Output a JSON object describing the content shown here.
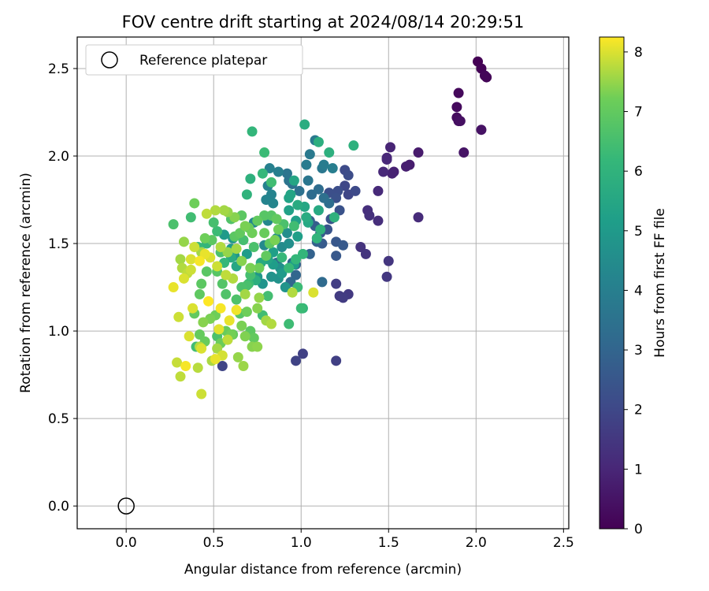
{
  "chart_data": {
    "type": "scatter",
    "title": "FOV centre drift starting at 2024/08/14 20:29:51",
    "xlabel": "Angular distance from reference (arcmin)",
    "ylabel": "Rotation from reference (arcmin)",
    "xlim": [
      -0.28,
      2.53
    ],
    "ylim": [
      -0.13,
      2.68
    ],
    "x_ticks": [
      0.0,
      0.5,
      1.0,
      1.5,
      2.0,
      2.5
    ],
    "x_tick_labels": [
      "0.0",
      "0.5",
      "1.0",
      "1.5",
      "2.0",
      "2.5"
    ],
    "y_ticks": [
      0.0,
      0.5,
      1.0,
      1.5,
      2.0,
      2.5
    ],
    "y_tick_labels": [
      "0.0",
      "0.5",
      "1.0",
      "1.5",
      "2.0",
      "2.5"
    ],
    "grid": true,
    "legend": {
      "placement": "top-left",
      "entries": [
        "Reference platepar"
      ]
    },
    "reference_point": {
      "x": 0.0,
      "y": 0.0
    },
    "colorbar": {
      "label": "Hours from first FF file",
      "range": [
        0,
        8.25
      ],
      "ticks": [
        0,
        1,
        2,
        3,
        4,
        5,
        6,
        7,
        8
      ],
      "tick_labels": [
        "0",
        "1",
        "2",
        "3",
        "4",
        "5",
        "6",
        "7",
        "8"
      ],
      "colormap": "viridis"
    },
    "points": [
      [
        2.01,
        2.54,
        0.0
      ],
      [
        2.03,
        2.5,
        0.05
      ],
      [
        2.06,
        2.45,
        0.1
      ],
      [
        2.05,
        2.46,
        0.12
      ],
      [
        1.9,
        2.36,
        0.2
      ],
      [
        1.89,
        2.28,
        0.25
      ],
      [
        1.89,
        2.22,
        0.3
      ],
      [
        1.9,
        2.2,
        0.35
      ],
      [
        1.91,
        2.2,
        0.4
      ],
      [
        2.03,
        2.15,
        0.45
      ],
      [
        1.93,
        2.02,
        0.5
      ],
      [
        1.67,
        2.02,
        0.7
      ],
      [
        1.62,
        1.95,
        0.75
      ],
      [
        1.6,
        1.94,
        0.8
      ],
      [
        1.53,
        1.91,
        0.85
      ],
      [
        1.52,
        1.9,
        0.9
      ],
      [
        1.51,
        2.05,
        0.95
      ],
      [
        1.49,
        1.99,
        1.0
      ],
      [
        1.49,
        1.98,
        1.02
      ],
      [
        1.47,
        1.91,
        1.05
      ],
      [
        1.44,
        1.8,
        1.1
      ],
      [
        1.67,
        1.65,
        1.15
      ],
      [
        1.44,
        1.63,
        1.2
      ],
      [
        1.38,
        1.69,
        1.25
      ],
      [
        1.39,
        1.66,
        1.3
      ],
      [
        1.34,
        1.48,
        1.35
      ],
      [
        1.37,
        1.44,
        1.4
      ],
      [
        1.5,
        1.4,
        1.45
      ],
      [
        1.49,
        1.31,
        1.5
      ],
      [
        1.27,
        1.21,
        1.55
      ],
      [
        1.22,
        1.2,
        1.6
      ],
      [
        1.24,
        1.19,
        1.65
      ],
      [
        1.2,
        1.27,
        1.7
      ],
      [
        1.2,
        0.83,
        1.75
      ],
      [
        1.01,
        0.87,
        1.8
      ],
      [
        0.97,
        0.83,
        1.85
      ],
      [
        0.55,
        0.8,
        1.9
      ],
      [
        1.27,
        1.78,
        1.95
      ],
      [
        1.25,
        1.83,
        2.0
      ],
      [
        1.31,
        1.8,
        2.05
      ],
      [
        1.25,
        1.92,
        2.1
      ],
      [
        1.27,
        1.89,
        2.15
      ],
      [
        1.21,
        1.8,
        2.2
      ],
      [
        1.16,
        1.79,
        2.25
      ],
      [
        1.2,
        1.76,
        2.3
      ],
      [
        1.22,
        1.69,
        2.35
      ],
      [
        1.17,
        1.64,
        2.4
      ],
      [
        1.15,
        1.58,
        2.45
      ],
      [
        1.2,
        1.51,
        2.5
      ],
      [
        1.2,
        1.43,
        2.55
      ],
      [
        1.24,
        1.49,
        2.6
      ],
      [
        1.12,
        1.5,
        2.65
      ],
      [
        1.11,
        1.56,
        2.7
      ],
      [
        1.08,
        1.6,
        2.75
      ],
      [
        1.05,
        1.63,
        2.8
      ],
      [
        1.09,
        1.51,
        2.85
      ],
      [
        1.05,
        1.44,
        2.9
      ],
      [
        0.97,
        1.38,
        2.95
      ],
      [
        0.95,
        1.39,
        3.0
      ],
      [
        0.97,
        1.32,
        3.05
      ],
      [
        0.94,
        1.28,
        3.1
      ],
      [
        0.86,
        1.39,
        3.15
      ],
      [
        1.12,
        1.28,
        3.2
      ],
      [
        1.06,
        1.78,
        3.25
      ],
      [
        1.1,
        1.81,
        3.3
      ],
      [
        1.16,
        1.73,
        3.35
      ],
      [
        1.13,
        1.76,
        3.4
      ],
      [
        0.99,
        1.8,
        3.45
      ],
      [
        0.95,
        1.84,
        3.5
      ],
      [
        0.93,
        1.86,
        3.55
      ],
      [
        0.92,
        1.9,
        3.6
      ],
      [
        1.04,
        1.86,
        3.65
      ],
      [
        1.12,
        1.93,
        3.7
      ],
      [
        1.05,
        2.01,
        3.75
      ],
      [
        1.08,
        2.09,
        3.8
      ],
      [
        1.03,
        1.95,
        3.85
      ],
      [
        1.13,
        1.95,
        3.9
      ],
      [
        1.18,
        1.93,
        3.95
      ],
      [
        0.87,
        1.91,
        4.0
      ],
      [
        0.82,
        1.93,
        4.05
      ],
      [
        0.81,
        1.83,
        4.1
      ],
      [
        0.83,
        1.78,
        4.15
      ],
      [
        0.8,
        1.75,
        4.2
      ],
      [
        0.84,
        1.73,
        4.25
      ],
      [
        0.81,
        1.63,
        4.3
      ],
      [
        0.73,
        1.62,
        4.35
      ],
      [
        0.79,
        1.49,
        4.4
      ],
      [
        0.89,
        1.48,
        4.45
      ],
      [
        0.86,
        1.53,
        4.5
      ],
      [
        0.92,
        1.56,
        4.55
      ],
      [
        0.93,
        1.5,
        4.6
      ],
      [
        0.88,
        1.36,
        4.65
      ],
      [
        0.87,
        1.3,
        4.7
      ],
      [
        0.83,
        1.31,
        4.75
      ],
      [
        0.78,
        1.27,
        4.8
      ],
      [
        0.75,
        1.31,
        4.85
      ],
      [
        0.62,
        1.43,
        4.9
      ],
      [
        0.61,
        1.53,
        4.95
      ],
      [
        0.56,
        1.55,
        5.0
      ],
      [
        0.6,
        1.47,
        5.05
      ],
      [
        0.69,
        1.44,
        5.1
      ],
      [
        0.84,
        1.38,
        5.12
      ],
      [
        0.96,
        1.38,
        5.15
      ],
      [
        0.98,
        1.54,
        5.2
      ],
      [
        0.97,
        1.63,
        5.25
      ],
      [
        0.93,
        1.69,
        5.3
      ],
      [
        0.93,
        1.76,
        5.35
      ],
      [
        0.94,
        1.78,
        5.4
      ],
      [
        0.96,
        1.86,
        5.45
      ],
      [
        1.02,
        1.71,
        5.5
      ],
      [
        1.04,
        1.62,
        5.55
      ],
      [
        1.1,
        1.69,
        5.6
      ],
      [
        0.98,
        1.72,
        5.65
      ],
      [
        1.03,
        1.65,
        5.7
      ],
      [
        1.02,
        2.18,
        5.75
      ],
      [
        1.1,
        2.08,
        5.8
      ],
      [
        1.16,
        2.02,
        5.85
      ],
      [
        1.3,
        2.06,
        5.9
      ],
      [
        1.19,
        1.65,
        5.95
      ],
      [
        1.11,
        1.58,
        6.0
      ],
      [
        1.09,
        1.53,
        6.05
      ],
      [
        1.01,
        1.44,
        6.1
      ],
      [
        0.97,
        1.41,
        6.15
      ],
      [
        0.89,
        1.42,
        6.2
      ],
      [
        0.93,
        1.36,
        6.25
      ],
      [
        1.0,
        1.13,
        6.3
      ],
      [
        0.93,
        1.04,
        6.35
      ],
      [
        0.78,
        1.09,
        6.4
      ],
      [
        0.81,
        1.2,
        6.45
      ],
      [
        0.71,
        1.32,
        6.5
      ],
      [
        0.69,
        1.26,
        6.55
      ],
      [
        0.66,
        1.25,
        6.6
      ],
      [
        0.63,
        1.18,
        6.65
      ],
      [
        0.57,
        1.21,
        6.7
      ],
      [
        0.55,
        1.27,
        6.75
      ],
      [
        0.52,
        1.34,
        6.8
      ],
      [
        0.46,
        1.34,
        6.85
      ],
      [
        0.43,
        1.27,
        6.9
      ],
      [
        0.42,
        1.21,
        6.95
      ],
      [
        0.39,
        1.1,
        7.0
      ],
      [
        0.42,
        0.98,
        7.05
      ],
      [
        0.45,
        0.94,
        7.1
      ],
      [
        0.54,
        0.93,
        7.15
      ],
      [
        0.58,
        0.95,
        7.2
      ],
      [
        0.6,
        0.98,
        7.25
      ],
      [
        0.66,
        1.03,
        7.3
      ],
      [
        0.68,
        0.97,
        7.35
      ],
      [
        0.72,
        0.91,
        7.4
      ],
      [
        0.75,
        0.91,
        7.45
      ],
      [
        0.64,
        0.85,
        7.5
      ],
      [
        0.67,
        0.8,
        7.55
      ],
      [
        0.52,
        0.9,
        7.6
      ],
      [
        0.49,
        0.83,
        7.65
      ],
      [
        0.42,
        0.91,
        7.7
      ],
      [
        0.41,
        0.79,
        7.75
      ],
      [
        0.31,
        0.74,
        7.8
      ],
      [
        0.29,
        0.82,
        7.85
      ],
      [
        0.43,
        0.64,
        7.9
      ],
      [
        0.55,
        0.86,
        7.95
      ],
      [
        0.36,
        0.97,
        8.0
      ],
      [
        0.53,
        1.01,
        8.05
      ],
      [
        0.59,
        1.06,
        8.1
      ],
      [
        0.63,
        1.12,
        8.15
      ],
      [
        0.54,
        1.13,
        8.2
      ],
      [
        0.47,
        1.17,
        8.25
      ],
      [
        0.27,
        1.61,
        6.6
      ],
      [
        0.37,
        1.65,
        6.4
      ],
      [
        0.41,
        1.48,
        6.2
      ],
      [
        0.46,
        1.5,
        6.1
      ],
      [
        0.52,
        1.57,
        6.3
      ],
      [
        0.5,
        1.62,
        6.5
      ],
      [
        0.6,
        1.64,
        6.7
      ],
      [
        0.66,
        1.66,
        6.9
      ],
      [
        0.69,
        1.78,
        6.0
      ],
      [
        0.71,
        1.87,
        5.9
      ],
      [
        0.72,
        2.14,
        6.1
      ],
      [
        0.79,
        2.02,
        6.3
      ],
      [
        0.78,
        1.9,
        6.2
      ],
      [
        0.83,
        1.85,
        6.4
      ],
      [
        0.83,
        1.66,
        6.8
      ],
      [
        0.86,
        1.64,
        7.0
      ],
      [
        0.79,
        1.56,
        7.1
      ],
      [
        0.72,
        1.56,
        7.2
      ],
      [
        0.68,
        1.6,
        7.3
      ],
      [
        0.62,
        1.65,
        7.4
      ],
      [
        0.58,
        1.68,
        7.5
      ],
      [
        0.56,
        1.69,
        7.6
      ],
      [
        0.51,
        1.69,
        7.7
      ],
      [
        0.46,
        1.67,
        7.8
      ],
      [
        0.39,
        1.73,
        7.2
      ],
      [
        0.33,
        1.51,
        7.5
      ],
      [
        0.31,
        1.41,
        7.6
      ],
      [
        0.32,
        1.36,
        7.7
      ],
      [
        0.35,
        1.33,
        7.8
      ],
      [
        0.37,
        1.35,
        7.9
      ],
      [
        0.33,
        1.3,
        8.0
      ],
      [
        0.27,
        1.25,
        8.1
      ],
      [
        0.3,
        1.08,
        7.9
      ],
      [
        0.38,
        1.13,
        8.0
      ],
      [
        0.44,
        1.05,
        7.4
      ],
      [
        0.48,
        1.07,
        7.3
      ],
      [
        0.51,
        1.09,
        7.2
      ],
      [
        0.57,
        1.0,
        7.1
      ],
      [
        0.61,
        0.98,
        7.0
      ],
      [
        0.71,
        1.0,
        6.9
      ],
      [
        0.73,
        0.96,
        7.0
      ],
      [
        0.65,
        1.1,
        6.8
      ],
      [
        0.69,
        1.11,
        7.2
      ],
      [
        0.75,
        1.13,
        7.4
      ],
      [
        0.8,
        1.06,
        7.6
      ],
      [
        0.83,
        1.04,
        7.7
      ],
      [
        0.76,
        1.19,
        7.5
      ],
      [
        0.68,
        1.21,
        7.6
      ],
      [
        0.61,
        1.3,
        7.7
      ],
      [
        0.57,
        1.32,
        7.8
      ],
      [
        0.52,
        1.37,
        7.9
      ],
      [
        0.48,
        1.42,
        8.0
      ],
      [
        0.45,
        1.44,
        8.1
      ],
      [
        0.42,
        1.4,
        8.2
      ],
      [
        0.37,
        1.41,
        8.0
      ],
      [
        0.39,
        1.48,
        7.9
      ],
      [
        0.43,
        1.45,
        7.6
      ],
      [
        0.54,
        1.48,
        7.7
      ],
      [
        0.58,
        1.45,
        7.5
      ],
      [
        0.63,
        1.47,
        7.6
      ],
      [
        0.66,
        1.4,
        7.4
      ],
      [
        0.71,
        1.36,
        7.3
      ],
      [
        0.76,
        1.36,
        7.2
      ],
      [
        0.8,
        1.43,
        7.0
      ],
      [
        0.82,
        1.5,
        6.9
      ],
      [
        0.73,
        1.48,
        6.6
      ],
      [
        0.67,
        1.52,
        6.5
      ],
      [
        0.62,
        1.54,
        6.9
      ],
      [
        0.65,
        1.56,
        7.0
      ],
      [
        0.7,
        1.59,
        7.1
      ],
      [
        0.75,
        1.63,
        7.0
      ],
      [
        0.79,
        1.66,
        6.8
      ],
      [
        0.85,
        1.52,
        7.3
      ],
      [
        0.87,
        1.58,
        7.2
      ],
      [
        0.9,
        1.61,
        6.6
      ],
      [
        0.96,
        1.6,
        6.4
      ],
      [
        0.95,
        1.22,
        7.7
      ],
      [
        0.98,
        1.25,
        6.3
      ],
      [
        1.01,
        1.13,
        6.1
      ],
      [
        1.07,
        1.22,
        8.0
      ],
      [
        0.43,
        0.9,
        8.0
      ],
      [
        0.4,
        0.91,
        6.4
      ],
      [
        0.34,
        0.8,
        8.2
      ],
      [
        0.51,
        0.84,
        8.1
      ],
      [
        0.58,
        0.95,
        7.8
      ],
      [
        0.52,
        0.97,
        6.6
      ],
      [
        0.7,
        1.27,
        6.3
      ],
      [
        0.74,
        1.29,
        5.8
      ],
      [
        0.77,
        1.39,
        5.6
      ],
      [
        0.81,
        1.41,
        5.4
      ],
      [
        0.84,
        1.45,
        5.2
      ],
      [
        0.89,
        1.33,
        5.0
      ],
      [
        0.91,
        1.25,
        4.8
      ],
      [
        0.63,
        1.37,
        5.5
      ],
      [
        0.6,
        1.42,
        5.7
      ],
      [
        0.56,
        1.39,
        6.2
      ],
      [
        0.54,
        1.45,
        6.6
      ],
      [
        0.49,
        1.52,
        6.9
      ],
      [
        0.45,
        1.53,
        7.2
      ]
    ]
  }
}
